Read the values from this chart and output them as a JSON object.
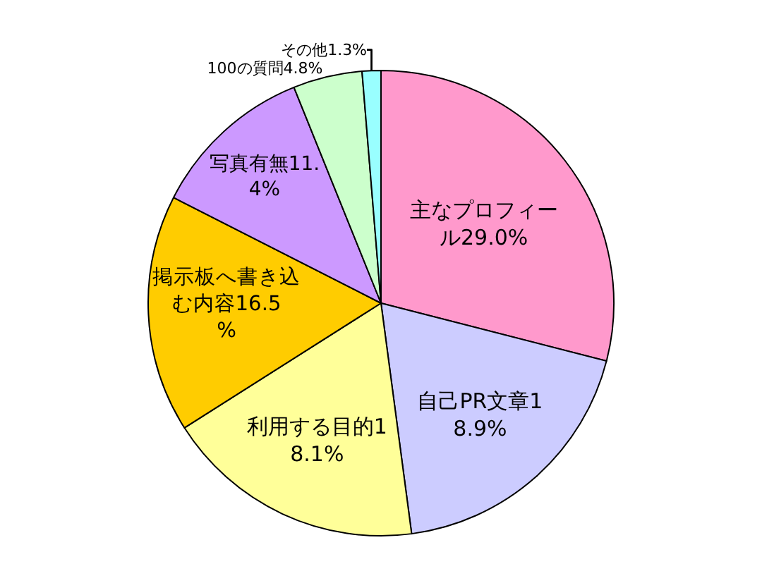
{
  "chart_data": {
    "type": "pie",
    "categories": [
      "主なプロフィール",
      "自己PR文章",
      "利用する目的",
      "掲示板へ書き込む内容",
      "写真有無",
      "100の質問",
      "その他"
    ],
    "values": [
      29.0,
      18.9,
      18.1,
      16.5,
      11.4,
      4.8,
      1.3
    ],
    "value_labels": [
      "29.0%",
      "18.9%",
      "18.1%",
      "16.5%",
      "11.4%",
      "4.8%",
      "1.3%"
    ],
    "colors": [
      "#ff99cc",
      "#ccccff",
      "#ffff99",
      "#ffcc00",
      "#cc99ff",
      "#ccffcc",
      "#99ffff"
    ],
    "legend": false
  }
}
